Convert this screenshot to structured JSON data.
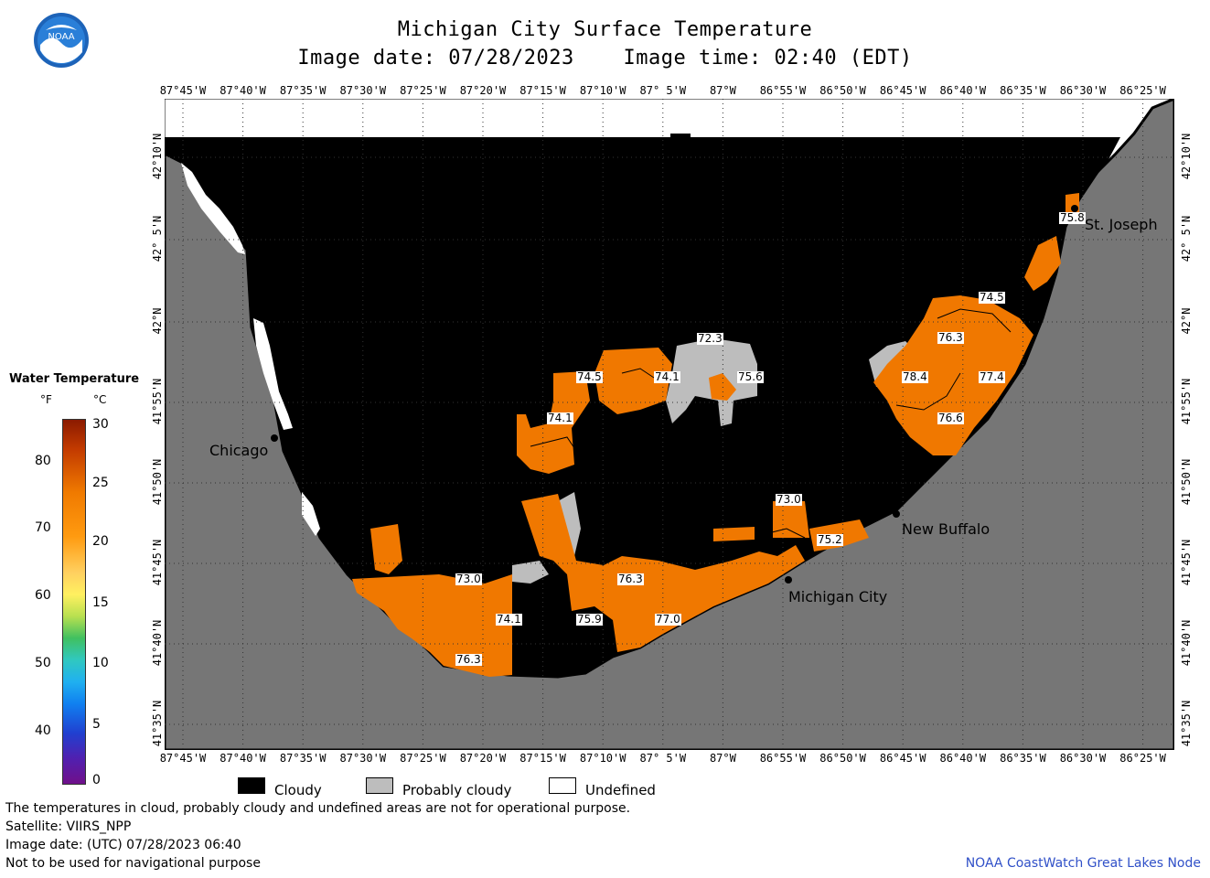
{
  "title": "Michigan City Surface Temperature",
  "image_date": "Image date: 07/28/2023",
  "image_time": "Image time: 02:40 (EDT)",
  "logo_text": "NOAA",
  "lon_labels": [
    "87°45'W",
    "87°40'W",
    "87°35'W",
    "87°30'W",
    "87°25'W",
    "87°20'W",
    "87°15'W",
    "87°10'W",
    "87° 5'W",
    "87°W",
    "86°55'W",
    "86°50'W",
    "86°45'W",
    "86°40'W",
    "86°35'W",
    "86°30'W",
    "86°25'W"
  ],
  "lat_labels": [
    "42°10'N",
    "42° 5'N",
    "42°N",
    "41°55'N",
    "41°50'N",
    "41°45'N",
    "41°40'N",
    "41°35'N"
  ],
  "cities": {
    "st_joseph": "St. Joseph",
    "chicago": "Chicago",
    "new_buffalo": "New Buffalo",
    "michigan_city": "Michigan City"
  },
  "temp_labels": [
    "72.3",
    "74.5",
    "74.1",
    "75.6",
    "74.1",
    "74.5",
    "76.3",
    "78.4",
    "77.4",
    "76.6",
    "75.8",
    "73.0",
    "75.2",
    "73.0",
    "76.3",
    "74.1",
    "75.9",
    "77.0",
    "76.3"
  ],
  "colorbar": {
    "title": "Water Temperature",
    "unit_f": "°F",
    "unit_c": "°C",
    "f_ticks": [
      "80",
      "70",
      "60",
      "50",
      "40"
    ],
    "c_ticks": [
      "30",
      "25",
      "20",
      "15",
      "10",
      "5",
      "0"
    ]
  },
  "legend": {
    "cloudy": "Cloudy",
    "probably_cloudy": "Probably cloudy",
    "undefined": "Undefined"
  },
  "footer": {
    "line1": "The temperatures in cloud, probably cloudy and undefined areas are not for operational purpose.",
    "line2": "Satellite: VIIRS_NPP",
    "line3": "Image date: (UTC) 07/28/2023  06:40",
    "line4": "Not to be used for navigational purpose"
  },
  "credit": "NOAA CoastWatch Great Lakes Node",
  "colors": {
    "land": "#767676",
    "cloudy": "#000000",
    "probably_cloudy": "#bdbdbd",
    "water_warm": "#f07800",
    "undefined": "#ffffff"
  }
}
